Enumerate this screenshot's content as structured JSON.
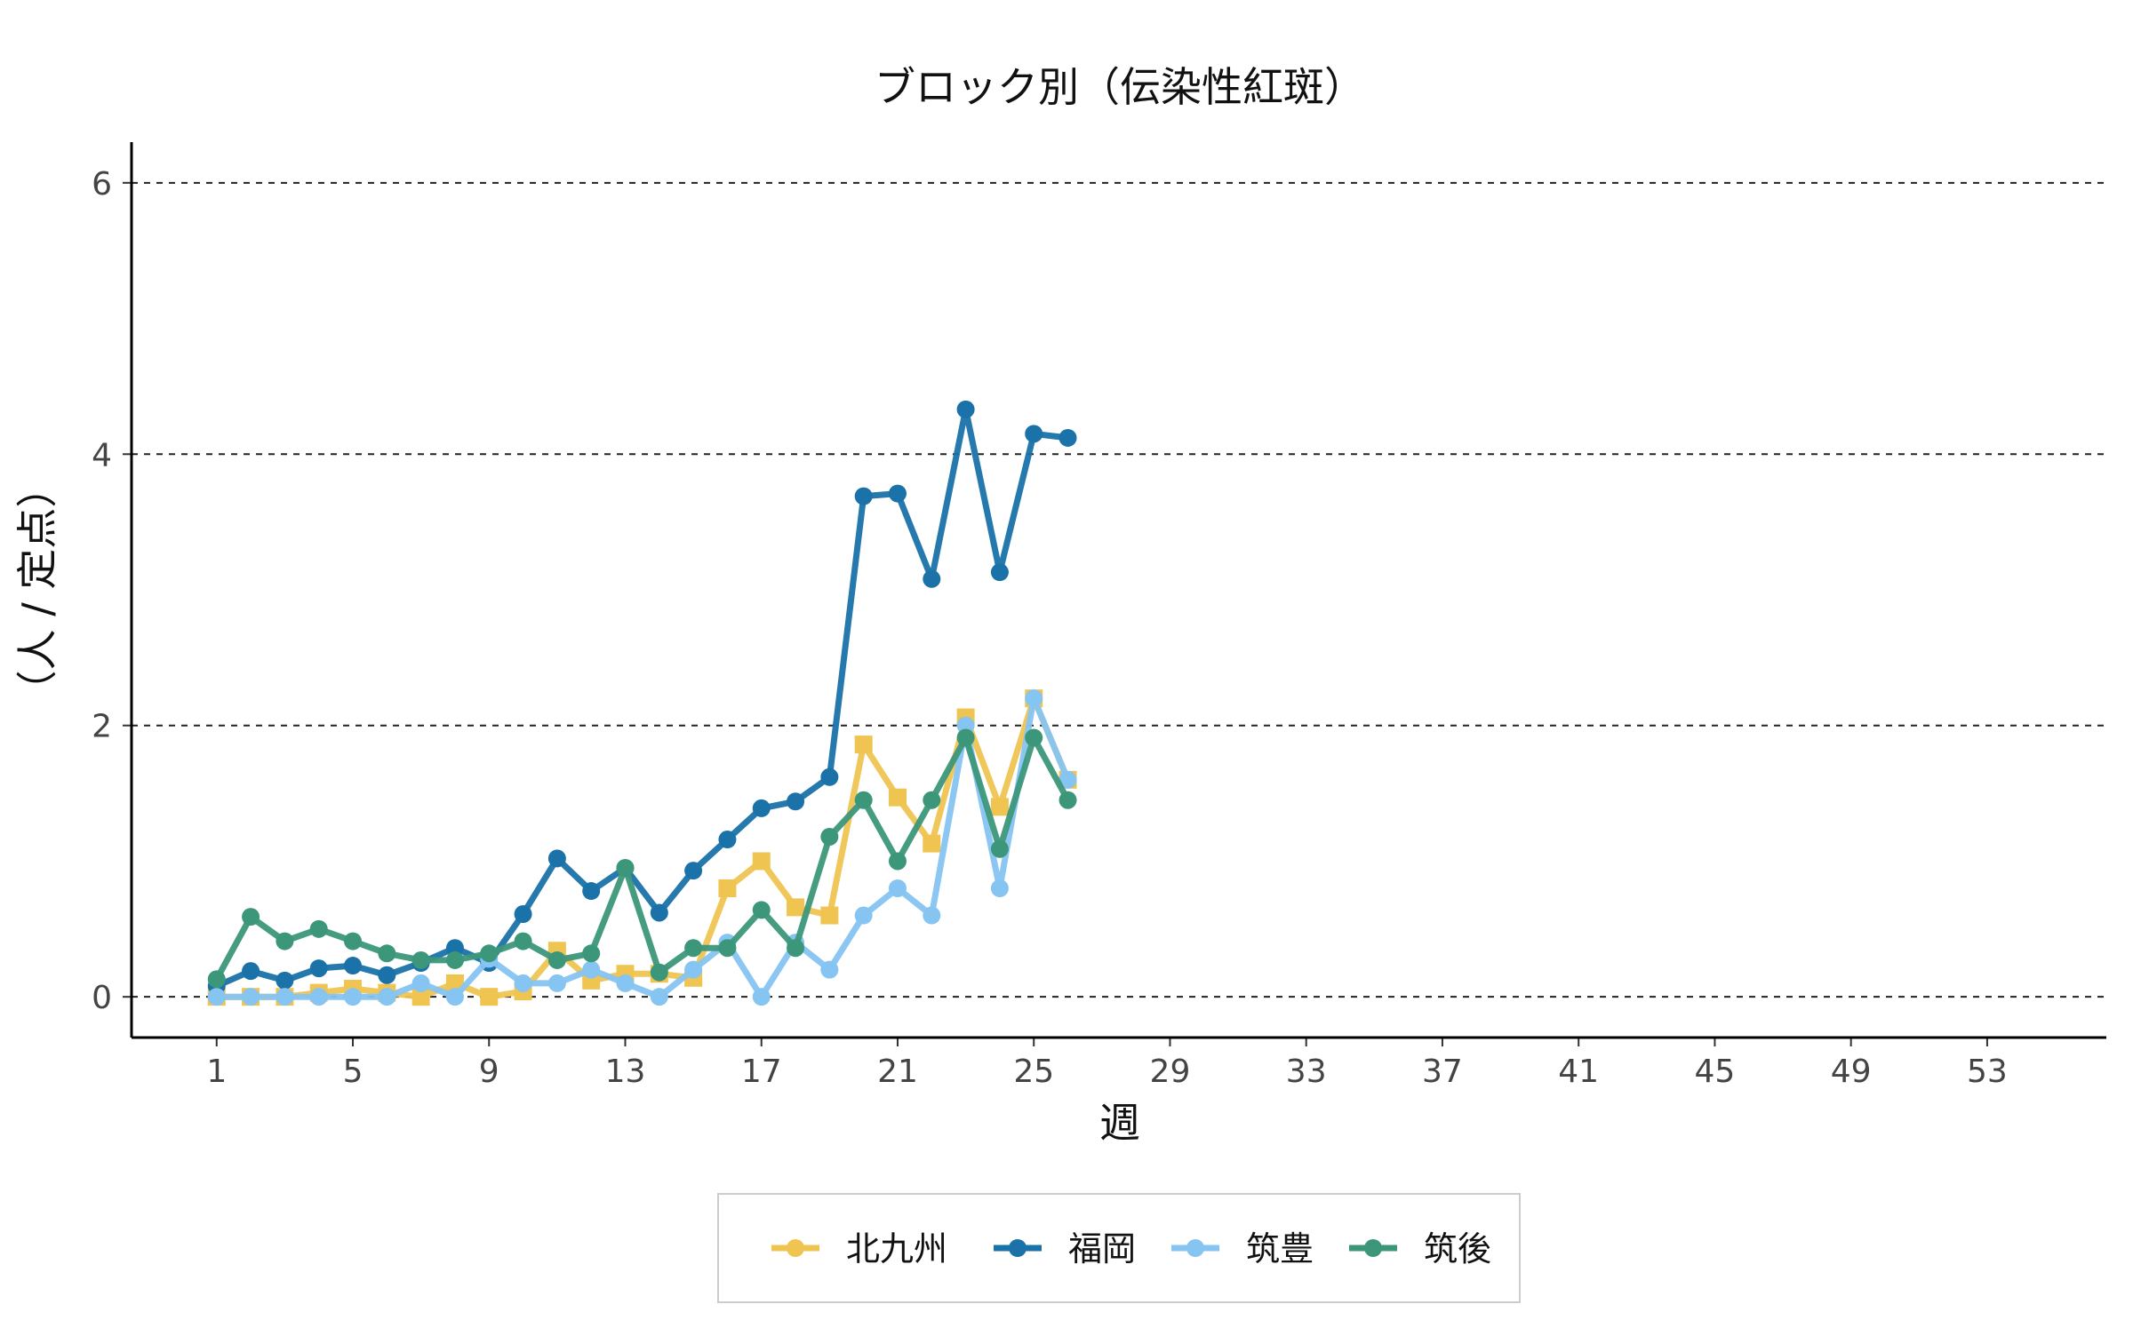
{
  "chart_data": {
    "type": "line",
    "title": "ブロック別（伝染性紅斑）",
    "xlabel": "週",
    "ylabel": "（人 / 定点）",
    "xlim": [
      -1.5,
      56.5
    ],
    "ylim": [
      -0.3,
      6.3
    ],
    "x_ticks": [
      1,
      5,
      9,
      13,
      17,
      21,
      25,
      29,
      33,
      37,
      41,
      45,
      49,
      53
    ],
    "y_ticks": [
      0,
      2,
      4,
      6
    ],
    "grid": "horizontal dashed",
    "legend_position": "bottom",
    "series": [
      {
        "name": "北九州",
        "color": "#EFC451",
        "marker": "square",
        "x": [
          1,
          2,
          3,
          4,
          5,
          6,
          7,
          8,
          9,
          10,
          11,
          12,
          13,
          14,
          15,
          16,
          17,
          18,
          19,
          20,
          21,
          22,
          23,
          24,
          25,
          26
        ],
        "y": [
          0.0,
          0.0,
          0.0,
          0.03,
          0.06,
          0.03,
          0.0,
          0.1,
          0.0,
          0.04,
          0.34,
          0.12,
          0.17,
          0.17,
          0.14,
          0.8,
          1.0,
          0.66,
          0.6,
          1.86,
          1.47,
          1.13,
          2.06,
          1.4,
          2.2,
          1.6
        ]
      },
      {
        "name": "福岡",
        "color": "#1A72A9",
        "marker": "circle",
        "x": [
          1,
          2,
          3,
          4,
          5,
          6,
          7,
          8,
          9,
          10,
          11,
          12,
          13,
          14,
          15,
          16,
          17,
          18,
          19,
          20,
          21,
          22,
          23,
          24,
          25,
          26
        ],
        "y": [
          0.08,
          0.19,
          0.12,
          0.21,
          0.23,
          0.16,
          0.25,
          0.36,
          0.25,
          0.61,
          1.02,
          0.78,
          0.95,
          0.62,
          0.93,
          1.16,
          1.39,
          1.44,
          1.62,
          3.69,
          3.71,
          3.08,
          4.33,
          3.13,
          4.15,
          4.12
        ]
      },
      {
        "name": "筑豊",
        "color": "#86C4F2",
        "marker": "circle",
        "x": [
          1,
          2,
          3,
          4,
          5,
          6,
          7,
          8,
          9,
          10,
          11,
          12,
          13,
          14,
          15,
          16,
          17,
          18,
          19,
          20,
          21,
          22,
          23,
          24,
          25,
          26
        ],
        "y": [
          0.0,
          0.0,
          0.0,
          0.0,
          0.0,
          0.0,
          0.1,
          0.0,
          0.28,
          0.1,
          0.1,
          0.2,
          0.1,
          0.0,
          0.2,
          0.4,
          0.0,
          0.4,
          0.2,
          0.6,
          0.8,
          0.6,
          2.0,
          0.8,
          2.2,
          1.6
        ]
      },
      {
        "name": "筑後",
        "color": "#3C977A",
        "marker": "circle",
        "x": [
          1,
          2,
          3,
          4,
          5,
          6,
          7,
          8,
          9,
          10,
          11,
          12,
          13,
          14,
          15,
          16,
          17,
          18,
          19,
          20,
          21,
          22,
          23,
          24,
          25,
          26
        ],
        "y": [
          0.13,
          0.59,
          0.41,
          0.5,
          0.41,
          0.32,
          0.27,
          0.27,
          0.32,
          0.41,
          0.27,
          0.32,
          0.95,
          0.18,
          0.36,
          0.36,
          0.64,
          0.36,
          1.18,
          1.45,
          1.0,
          1.45,
          1.91,
          1.09,
          1.91,
          1.45
        ]
      }
    ]
  }
}
